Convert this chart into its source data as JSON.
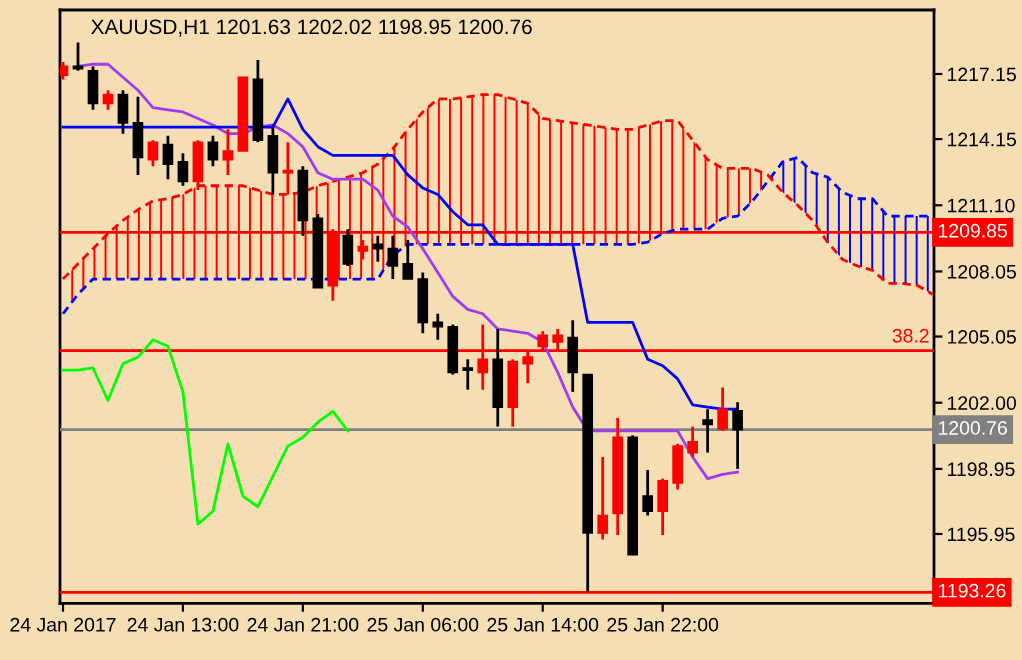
{
  "chart_data": {
    "type": "candlestick",
    "title": "XAUUSD,H1 1201.63 1202.02 1198.95 1200.76",
    "categories": [
      "24 Jan 2017",
      null,
      null,
      null,
      null,
      null,
      null,
      null,
      "24 Jan 13:00",
      null,
      null,
      null,
      null,
      null,
      null,
      null,
      "24 Jan 21:00",
      null,
      null,
      null,
      null,
      null,
      null,
      null,
      "25 Jan 06:00",
      null,
      null,
      null,
      null,
      null,
      null,
      null,
      "25 Jan 14:00",
      null,
      null,
      null,
      null,
      null,
      null,
      null,
      "25 Jan 22:00",
      null,
      null,
      null,
      null,
      null,
      null,
      null,
      null,
      null,
      null,
      null,
      null,
      null,
      null,
      null,
      null,
      null,
      null
    ],
    "ohlc": [
      [
        1217.1,
        1217.7,
        1216.9,
        1217.5
      ],
      [
        1217.5,
        1218.6,
        1217.3,
        1217.4
      ],
      [
        1217.3,
        1217.5,
        1215.5,
        1215.8
      ],
      [
        1215.8,
        1216.4,
        1215.5,
        1216.2
      ],
      [
        1216.2,
        1216.4,
        1214.4,
        1214.9
      ],
      [
        1214.9,
        1216.1,
        1212.5,
        1213.3
      ],
      [
        1213.2,
        1214.1,
        1212.9,
        1214.0
      ],
      [
        1213.9,
        1214.3,
        1212.3,
        1213.0
      ],
      [
        1213.1,
        1213.5,
        1212.0,
        1212.2
      ],
      [
        1212.2,
        1214.1,
        1211.8,
        1214.0
      ],
      [
        1214.0,
        1214.3,
        1212.9,
        1213.2
      ],
      [
        1213.2,
        1214.6,
        1212.5,
        1213.6
      ],
      [
        1213.6,
        1217.0,
        1213.6,
        1217.0
      ],
      [
        1216.9,
        1217.8,
        1214.0,
        1214.1
      ],
      [
        1214.3,
        1214.7,
        1211.6,
        1212.6
      ],
      [
        1212.6,
        1214.0,
        1211.6,
        1212.7
      ],
      [
        1212.7,
        1212.9,
        1209.7,
        1210.4
      ],
      [
        1210.5,
        1210.7,
        1207.3,
        1207.3
      ],
      [
        1207.4,
        1210.0,
        1206.7,
        1209.8
      ],
      [
        1209.7,
        1210.0,
        1208.3,
        1208.4
      ],
      [
        1209.0,
        1209.5,
        1208.6,
        1209.2
      ],
      [
        1209.3,
        1209.7,
        1208.5,
        1209.1
      ],
      [
        1209.1,
        1209.7,
        1207.7,
        1208.3
      ],
      [
        1208.4,
        1209.5,
        1207.7,
        1207.7
      ],
      [
        1207.7,
        1208.0,
        1205.2,
        1205.7
      ],
      [
        1205.7,
        1206.1,
        1204.9,
        1205.5
      ],
      [
        1205.5,
        1205.6,
        1203.3,
        1203.4
      ],
      [
        1203.6,
        1204.0,
        1202.6,
        1203.5
      ],
      [
        1203.4,
        1205.6,
        1202.6,
        1204.0
      ],
      [
        1204.0,
        1205.4,
        1200.9,
        1201.8
      ],
      [
        1201.8,
        1204.0,
        1200.9,
        1203.9
      ],
      [
        1203.8,
        1204.4,
        1202.9,
        1204.1
      ],
      [
        1204.6,
        1205.3,
        1204.4,
        1205.1
      ],
      [
        1204.8,
        1205.4,
        1204.4,
        1205.1
      ],
      [
        1205.0,
        1205.8,
        1202.5,
        1203.4
      ],
      [
        1203.3,
        1203.3,
        1193.3,
        1196.0
      ],
      [
        1196.0,
        1199.5,
        1195.7,
        1196.8
      ],
      [
        1196.9,
        1201.3,
        1195.9,
        1200.4
      ],
      [
        1200.4,
        1200.5,
        1195.0,
        1195.0
      ],
      [
        1197.7,
        1198.9,
        1196.8,
        1197.0
      ],
      [
        1197.0,
        1198.5,
        1195.9,
        1198.4
      ],
      [
        1198.3,
        1200.1,
        1198.0,
        1200.0
      ],
      [
        1199.7,
        1200.9,
        1199.5,
        1200.2
      ],
      [
        1201.2,
        1201.7,
        1199.7,
        1201.0
      ],
      [
        1200.8,
        1202.7,
        1200.7,
        1201.7
      ],
      [
        1201.63,
        1202.02,
        1198.95,
        1200.76
      ],
      null,
      null,
      null,
      null,
      null,
      null,
      null,
      null,
      null,
      null,
      null,
      null,
      null
    ],
    "colors": [
      "#ff0000",
      "#000000",
      "#000000",
      "#ff0000",
      "#000000",
      "#000000",
      "#ff0000",
      "#000000",
      "#000000",
      "#ff0000",
      "#000000",
      "#ff0000",
      "#ff0000",
      "#000000",
      "#000000",
      "#ff0000",
      "#000000",
      "#000000",
      "#ff0000",
      "#000000",
      "#ff0000",
      "#000000",
      "#000000",
      "#000000",
      "#000000",
      "#000000",
      "#000000",
      "#000000",
      "#ff0000",
      "#000000",
      "#ff0000",
      "#ff0000",
      "#ff0000",
      "#ff0000",
      "#000000",
      "#000000",
      "#ff0000",
      "#ff0000",
      "#000000",
      "#000000",
      "#ff0000",
      "#ff0000",
      "#ff0000",
      "#000000",
      "#ff0000",
      "#000000",
      null,
      null,
      null,
      null,
      null,
      null,
      null,
      null,
      null,
      null,
      null,
      null,
      null
    ],
    "series": [
      {
        "type": "line",
        "color": "#0000ff",
        "line_style": "dashed",
        "values": [
          1206.1,
          1207.0,
          1207.7,
          1207.7,
          1207.7,
          1207.7,
          1207.7,
          1207.7,
          1207.7,
          1207.7,
          1207.7,
          1207.7,
          1207.7,
          1207.7,
          1207.7,
          1207.7,
          1207.7,
          1207.7,
          1207.7,
          1207.7,
          1207.7,
          1207.7,
          1208.8,
          1209.3,
          1209.3,
          1209.3,
          1209.3,
          1209.3,
          1209.3,
          1209.3,
          1209.3,
          1209.3,
          1209.3,
          1209.3,
          1209.3,
          1209.3,
          1209.3,
          1209.3,
          1209.3,
          1209.4,
          1209.8,
          1210.0,
          1210.0,
          1210.0,
          1210.5,
          1210.6,
          1211.3,
          1212.2,
          1213.1,
          1213.3,
          1212.6,
          1212.4,
          1211.7,
          1211.4,
          1211.4,
          1210.6,
          1210.6,
          1210.6,
          1210.6
        ]
      },
      {
        "type": "line",
        "color": "#ff0000",
        "line_style": "dashed",
        "values": [
          1207.7,
          1208.4,
          1209.1,
          1209.8,
          1210.4,
          1210.9,
          1211.3,
          1211.4,
          1211.6,
          1212.0,
          1212.0,
          1212.0,
          1212.0,
          1211.8,
          1211.6,
          1211.6,
          1211.7,
          1212.0,
          1212.2,
          1212.4,
          1212.6,
          1213.0,
          1213.7,
          1214.6,
          1215.4,
          1216.0,
          1216.0,
          1216.1,
          1216.2,
          1216.2,
          1216.0,
          1215.8,
          1215.1,
          1215.0,
          1214.9,
          1214.8,
          1214.7,
          1214.6,
          1214.6,
          1214.8,
          1215.0,
          1215.0,
          1214.1,
          1213.2,
          1212.8,
          1212.8,
          1212.8,
          1212.5,
          1211.7,
          1211.1,
          1210.4,
          1209.4,
          1208.6,
          1208.3,
          1208.1,
          1207.5,
          1207.5,
          1207.4,
          1207.0
        ]
      },
      {
        "type": "line",
        "color": "#a03cf0",
        "line_style": "solid",
        "values": [
          null,
          1217.5,
          1217.6,
          1217.6,
          1217.0,
          1216.4,
          1215.6,
          1215.5,
          1215.4,
          1215.1,
          1214.8,
          1214.4,
          1214.4,
          1214.7,
          1214.8,
          1214.4,
          1213.8,
          1212.6,
          1212.3,
          1212.3,
          1212.3,
          1211.8,
          1210.6,
          1210.1,
          1209.1,
          1208.0,
          1206.9,
          1206.3,
          1206.1,
          1205.4,
          1205.3,
          1205.2,
          1204.8,
          1203.4,
          1201.8,
          1200.7,
          1200.7,
          1200.7,
          1200.7,
          1200.7,
          1200.7,
          1200.7,
          1199.5,
          1198.5,
          1198.7,
          1198.8,
          null,
          null,
          null,
          null,
          null,
          null,
          null,
          null,
          null,
          null,
          null,
          null,
          null
        ]
      },
      {
        "type": "line",
        "color": "#0000ff",
        "line_style": "solid",
        "values": [
          1214.7,
          1214.7,
          1214.7,
          1214.7,
          1214.7,
          1214.7,
          1214.7,
          1214.7,
          1214.7,
          1214.7,
          1214.7,
          1214.7,
          1214.7,
          1214.7,
          1214.7,
          1216.0,
          1214.6,
          1213.8,
          1213.4,
          1213.4,
          1213.4,
          1213.4,
          1213.4,
          1212.5,
          1211.9,
          1211.6,
          1210.8,
          1210.2,
          1210.2,
          1209.3,
          1209.3,
          1209.3,
          1209.3,
          1209.3,
          1209.3,
          1205.7,
          1205.7,
          1205.7,
          1205.7,
          1204.0,
          1203.7,
          1203.1,
          1201.9,
          1201.8,
          1201.7,
          1201.7,
          null,
          null,
          null,
          null,
          null,
          null,
          null,
          null,
          null,
          null,
          null,
          null,
          null
        ]
      },
      {
        "type": "line",
        "color": "#00ff00",
        "line_style": "solid",
        "values": [
          1203.5,
          1203.5,
          1203.6,
          1202.1,
          1203.8,
          1204.1,
          1204.9,
          1204.6,
          1202.5,
          1196.4,
          1197.0,
          1200.1,
          1197.7,
          1197.2,
          1198.6,
          1200.0,
          1200.4,
          1201.1,
          1201.6,
          1200.7,
          null,
          null,
          null,
          null,
          null,
          null,
          null,
          null,
          null,
          null,
          null,
          null,
          null,
          null,
          null,
          null,
          null,
          null,
          null,
          null,
          null,
          null,
          null,
          null,
          null,
          null,
          null,
          null,
          null,
          null,
          null,
          null,
          null,
          null,
          null,
          null,
          null,
          null,
          null
        ]
      }
    ],
    "ref_lines": [
      {
        "axis": "y",
        "value": 1209.85,
        "label": "1209.85",
        "color": "#ff0000"
      },
      {
        "axis": "y",
        "value": 1204.4,
        "color": "#ff0000"
      },
      {
        "axis": "y",
        "value": 1200.76,
        "label": "1200.76",
        "color": "#808080"
      },
      {
        "axis": "y",
        "value": 1193.26,
        "label": "1193.26",
        "color": "#ff0000"
      }
    ],
    "annotations": [
      "38.2"
    ],
    "ylim": [
      1192.75,
      1220.1
    ],
    "yticks": [
      {
        "value": 1217.15,
        "label": "1217.15"
      },
      {
        "value": 1214.15,
        "label": "1214.15"
      },
      {
        "value": 1211.1,
        "label": "1211.10"
      },
      {
        "value": 1208.05,
        "label": "1208.05"
      },
      {
        "value": 1205.05,
        "label": "1205.05"
      },
      {
        "value": 1202.0,
        "label": "1202.00"
      },
      {
        "value": 1198.95,
        "label": "1198.95"
      },
      {
        "value": 1195.95,
        "label": "1195.95"
      }
    ],
    "grid": false,
    "legend": false
  }
}
